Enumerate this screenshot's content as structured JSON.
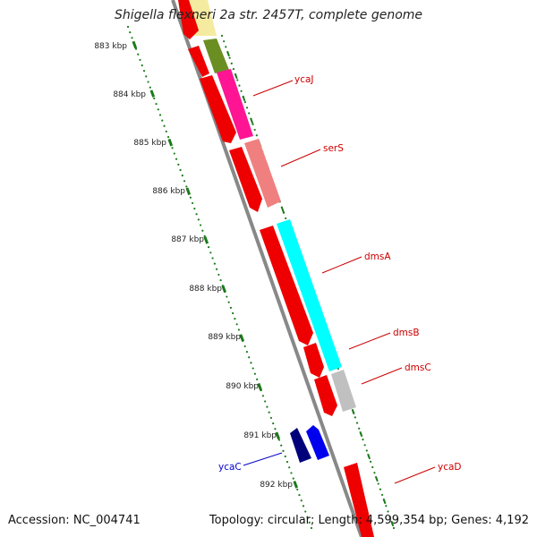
{
  "title": "Shigella flexneri 2a str. 2457T, complete genome",
  "accession": "Accession: NC_004741",
  "topology": "Topology: circular; Length: 4,599,354 bp; Genes: 4,192",
  "ruler": {
    "labels": [
      "883 kbp",
      "884 kbp",
      "885 kbp",
      "886 kbp",
      "887 kbp",
      "888 kbp",
      "889 kbp",
      "890 kbp",
      "891 kbp",
      "892 kbp"
    ]
  },
  "gene_labels": [
    {
      "text": "ycaJ",
      "color": "#cc0000"
    },
    {
      "text": "serS",
      "color": "#cc0000"
    },
    {
      "text": "dmsA",
      "color": "#cc0000"
    },
    {
      "text": "dmsB",
      "color": "#cc0000"
    },
    {
      "text": "dmsC",
      "color": "#cc0000"
    },
    {
      "text": "ycaC",
      "color": "#0000cc"
    },
    {
      "text": "ycaD",
      "color": "#cc0000"
    }
  ],
  "colors": {
    "cds": "#ee0000",
    "cds_reverse": "#00007a",
    "cds_reverse_2": "#0000ee",
    "backbone": "#888888",
    "ruler_ticks": "#1a7a1a",
    "cog_olive": "#6b8e23",
    "cog_magenta": "#ff1493",
    "cog_salmon": "#f08080",
    "cog_cyan": "#00ffff",
    "cog_grey": "#c0c0c0",
    "cog_yellow": "#f5eba0"
  }
}
